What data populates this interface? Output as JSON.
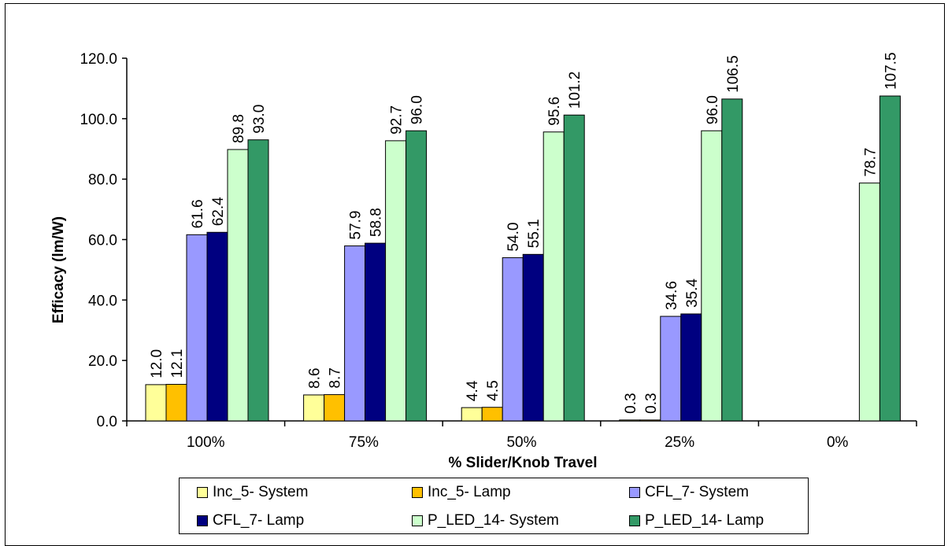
{
  "chart_data": {
    "type": "bar",
    "xlabel": "% Slider/Knob Travel",
    "ylabel": "Efficacy (lm/W)",
    "ylim": [
      0,
      120
    ],
    "yticks": [
      "0.0",
      "20.0",
      "40.0",
      "60.0",
      "80.0",
      "100.0",
      "120.0"
    ],
    "grid": false,
    "legend_position": "bottom",
    "categories": [
      "100%",
      "75%",
      "50%",
      "25%",
      "0%"
    ],
    "series": [
      {
        "name": "Inc_5- System",
        "color": "#ffff99",
        "values": [
          12.0,
          8.6,
          4.4,
          0.3,
          null
        ],
        "labels": [
          "12.0",
          "8.6",
          "4.4",
          "0.3",
          ""
        ]
      },
      {
        "name": "Inc_5- Lamp",
        "color": "#ffc000",
        "values": [
          12.1,
          8.7,
          4.5,
          0.3,
          null
        ],
        "labels": [
          "12.1",
          "8.7",
          "4.5",
          "0.3",
          ""
        ]
      },
      {
        "name": "CFL_7- System",
        "color": "#9999ff",
        "values": [
          61.6,
          57.9,
          54.0,
          34.6,
          null
        ],
        "labels": [
          "61.6",
          "57.9",
          "54.0",
          "34.6",
          ""
        ]
      },
      {
        "name": "CFL_7- Lamp",
        "color": "#000080",
        "values": [
          62.4,
          58.8,
          55.1,
          35.4,
          null
        ],
        "labels": [
          "62.4",
          "58.8",
          "55.1",
          "35.4",
          ""
        ]
      },
      {
        "name": "P_LED_14- System",
        "color": "#ccffcc",
        "values": [
          89.8,
          92.7,
          95.6,
          96.0,
          78.7
        ],
        "labels": [
          "89.8",
          "92.7",
          "95.6",
          "96.0",
          "78.7"
        ]
      },
      {
        "name": "P_LED_14- Lamp",
        "color": "#339966",
        "values": [
          93.0,
          96.0,
          101.2,
          106.5,
          107.5
        ],
        "labels": [
          "93.0",
          "96.0",
          "101.2",
          "106.5",
          "107.5"
        ]
      }
    ]
  }
}
